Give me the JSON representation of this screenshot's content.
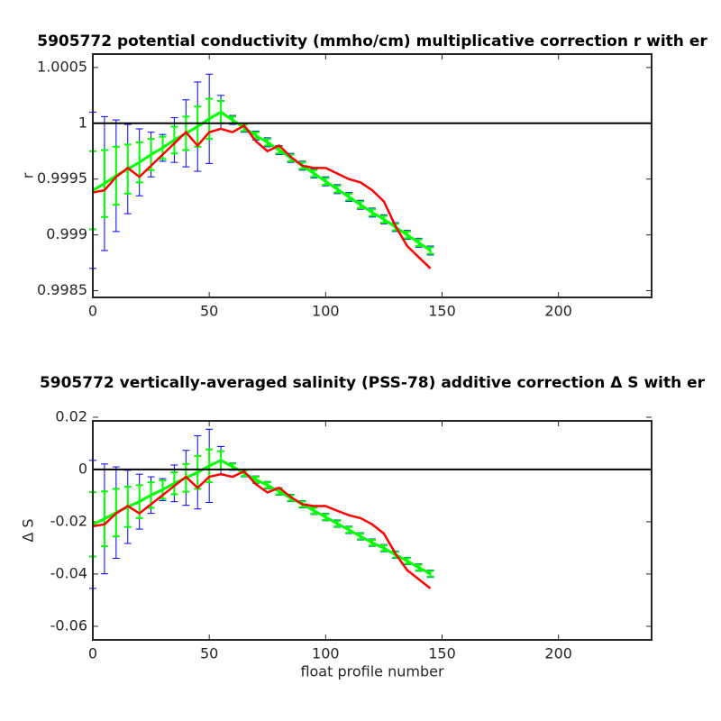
{
  "chart_data": [
    {
      "type": "errorbar",
      "title": "5905772 potential conductivity (mmho/cm) multiplicative correction r with er",
      "ylabel": "r",
      "x": [
        0,
        5,
        10,
        15,
        20,
        25,
        30,
        35,
        40,
        45,
        50,
        55,
        60,
        65,
        70,
        75,
        80,
        85,
        90,
        95,
        100,
        105,
        110,
        115,
        120,
        125,
        130,
        135,
        140,
        145
      ],
      "xlim": [
        0,
        240
      ],
      "xticks": [
        0,
        50,
        100,
        150,
        200
      ],
      "ylim": [
        0.99844,
        1.00062
      ],
      "yticks": [
        1.0005,
        1,
        0.9995,
        0.999,
        0.9985
      ],
      "reference": 1,
      "series": [
        {
          "color": "#0000ff",
          "values": [
            0.9994,
            0.99946,
            0.99953,
            0.99959,
            0.99965,
            0.99972,
            0.99978,
            0.99985,
            0.99991,
            0.99997,
            1.00004,
            1.0001,
            1.00003,
            0.99996,
            0.99989,
            0.99983,
            0.99976,
            0.99969,
            0.99962,
            0.99955,
            0.99948,
            0.99941,
            0.99934,
            0.99927,
            0.9992,
            0.99914,
            0.99907,
            0.999,
            0.99893,
            0.99886
          ],
          "errors": [
            0.0007,
            0.0006,
            0.0005,
            0.0004,
            0.0003,
            0.0002,
            0.00012,
            0.0002,
            0.0003,
            0.0004,
            0.0004,
            0.00015,
            4e-05,
            4e-05,
            4e-05,
            4e-05,
            4e-05,
            4e-05,
            4e-05,
            4e-05,
            4e-05,
            4e-05,
            4e-05,
            4e-05,
            4e-05,
            4e-05,
            4e-05,
            4e-05,
            4e-05,
            4e-05
          ]
        },
        {
          "color": "#00ff00",
          "values": [
            0.9994,
            0.99946,
            0.99953,
            0.99959,
            0.99965,
            0.99972,
            0.99978,
            0.99985,
            0.99991,
            0.99997,
            1.00004,
            1.0001,
            1.00003,
            0.99996,
            0.99989,
            0.99983,
            0.99976,
            0.99969,
            0.99962,
            0.99955,
            0.99948,
            0.99941,
            0.99934,
            0.99927,
            0.9992,
            0.99914,
            0.99907,
            0.999,
            0.99893,
            0.99886
          ],
          "errors": [
            0.00035,
            0.0003,
            0.00026,
            0.00022,
            0.00018,
            0.00014,
            0.0001,
            0.00012,
            0.00015,
            0.00018,
            0.00018,
            0.0001,
            3e-05,
            3e-05,
            3e-05,
            3e-05,
            3e-05,
            3e-05,
            3e-05,
            3e-05,
            3e-05,
            3e-05,
            3e-05,
            3e-05,
            3e-05,
            3e-05,
            3e-05,
            3e-05,
            3e-05,
            3e-05
          ]
        },
        {
          "color": "#ff0000",
          "values": [
            0.99938,
            0.9994,
            0.99952,
            0.9996,
            0.99952,
            0.99962,
            0.99972,
            0.99982,
            0.99992,
            0.9998,
            0.99992,
            0.99995,
            0.99992,
            0.99998,
            0.99984,
            0.99975,
            0.9998,
            0.9997,
            0.99962,
            0.9996,
            0.9996,
            0.99955,
            0.9995,
            0.99947,
            0.9994,
            0.9993,
            0.99908,
            0.9989,
            0.9988,
            0.9987
          ]
        }
      ]
    },
    {
      "type": "errorbar",
      "title": "5905772 vertically-averaged salinity (PSS-78) additive correction Δ S with er",
      "ylabel": "Δ S",
      "xlabel": "float profile number",
      "x": [
        0,
        5,
        10,
        15,
        20,
        25,
        30,
        35,
        40,
        45,
        50,
        55,
        60,
        65,
        70,
        75,
        80,
        85,
        90,
        95,
        100,
        105,
        110,
        115,
        120,
        125,
        130,
        135,
        140,
        145
      ],
      "xlim": [
        0,
        240
      ],
      "xticks": [
        0,
        50,
        100,
        150,
        200
      ],
      "ylim": [
        -0.0652,
        0.0186
      ],
      "yticks": [
        0.02,
        0,
        -0.02,
        -0.04,
        -0.06
      ],
      "reference": 0,
      "series": [
        {
          "color": "#0000ff",
          "values": [
            -0.021,
            -0.0189,
            -0.0165,
            -0.0143,
            -0.0123,
            -0.0098,
            -0.0077,
            -0.0053,
            -0.0032,
            -0.0011,
            0.0014,
            0.0035,
            0.0011,
            -0.0014,
            -0.0039,
            -0.006,
            -0.0084,
            -0.0109,
            -0.0133,
            -0.0158,
            -0.0182,
            -0.0207,
            -0.0231,
            -0.0256,
            -0.028,
            -0.0301,
            -0.0326,
            -0.035,
            -0.0375,
            -0.0399
          ],
          "errors": [
            0.0245,
            0.021,
            0.0175,
            0.014,
            0.0105,
            0.007,
            0.0042,
            0.007,
            0.0105,
            0.014,
            0.014,
            0.0053,
            0.0014,
            0.0014,
            0.0014,
            0.0014,
            0.0014,
            0.0014,
            0.0014,
            0.0014,
            0.0014,
            0.0014,
            0.0014,
            0.0014,
            0.0014,
            0.0014,
            0.0014,
            0.0014,
            0.0014,
            0.0014
          ]
        },
        {
          "color": "#00ff00",
          "values": [
            -0.021,
            -0.0189,
            -0.0165,
            -0.0143,
            -0.0123,
            -0.0098,
            -0.0077,
            -0.0053,
            -0.0032,
            -0.0011,
            0.0014,
            0.0035,
            0.0011,
            -0.0014,
            -0.0039,
            -0.006,
            -0.0084,
            -0.0109,
            -0.0133,
            -0.0158,
            -0.0182,
            -0.0207,
            -0.0231,
            -0.0256,
            -0.028,
            -0.0301,
            -0.0326,
            -0.035,
            -0.0375,
            -0.0399
          ],
          "errors": [
            0.0123,
            0.0105,
            0.0091,
            0.0077,
            0.0063,
            0.0049,
            0.0035,
            0.0042,
            0.0053,
            0.0063,
            0.0063,
            0.0035,
            0.0011,
            0.0011,
            0.0011,
            0.0011,
            0.0011,
            0.0011,
            0.0011,
            0.0011,
            0.0011,
            0.0011,
            0.0011,
            0.0011,
            0.0011,
            0.0011,
            0.0011,
            0.0011,
            0.0011,
            0.0011
          ]
        },
        {
          "color": "#ff0000",
          "values": [
            -0.0217,
            -0.021,
            -0.0168,
            -0.014,
            -0.0168,
            -0.0133,
            -0.0098,
            -0.0063,
            -0.0028,
            -0.007,
            -0.0028,
            -0.0018,
            -0.0028,
            -0.0007,
            -0.0056,
            -0.0088,
            -0.007,
            -0.0105,
            -0.0133,
            -0.014,
            -0.014,
            -0.0158,
            -0.0175,
            -0.0186,
            -0.021,
            -0.0245,
            -0.0322,
            -0.0385,
            -0.042,
            -0.0455
          ]
        }
      ]
    }
  ]
}
